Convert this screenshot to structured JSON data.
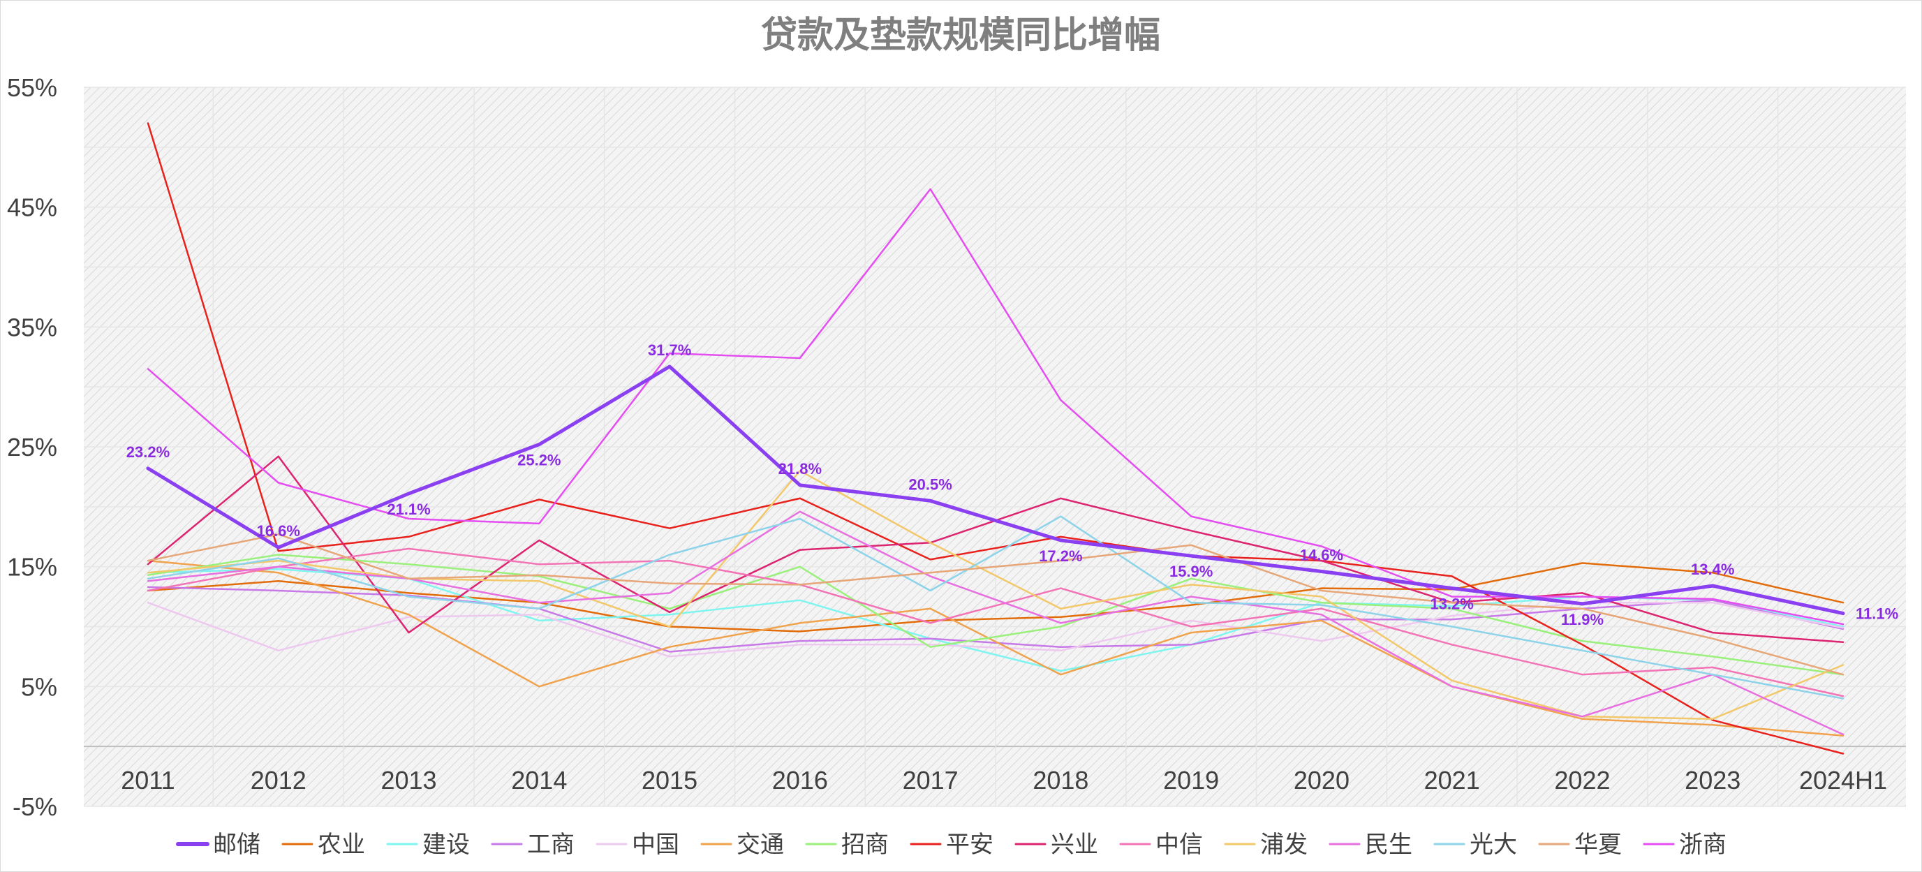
{
  "chart_data": {
    "type": "line",
    "title": "贷款及垫款规模同比增幅",
    "xlabel": "",
    "ylabel": "",
    "categories": [
      "2011",
      "2012",
      "2013",
      "2014",
      "2015",
      "2016",
      "2017",
      "2018",
      "2019",
      "2020",
      "2021",
      "2022",
      "2023",
      "2024H1"
    ],
    "ylim": [
      -5,
      55
    ],
    "yticks": [
      "55%",
      "45%",
      "35%",
      "25%",
      "15%",
      "5%",
      "-5%"
    ],
    "ytick_values": [
      55,
      45,
      35,
      25,
      15,
      5,
      -5
    ],
    "grid": true,
    "legend_position": "bottom",
    "series": [
      {
        "name": "邮储",
        "color": "#8a3ff0",
        "width": 5,
        "labels": true,
        "values": [
          23.2,
          16.6,
          21.1,
          25.2,
          31.7,
          21.8,
          20.5,
          17.2,
          15.9,
          14.6,
          13.2,
          11.9,
          13.4,
          11.1
        ]
      },
      {
        "name": "农业",
        "color": "#e36c0a",
        "width": 2.5,
        "values": [
          13.0,
          13.8,
          12.8,
          12.0,
          10.0,
          9.6,
          10.5,
          10.8,
          11.8,
          13.2,
          13.1,
          15.3,
          14.5,
          12.0
        ]
      },
      {
        "name": "建设",
        "color": "#7ff5f0",
        "width": 2.5,
        "values": [
          14.5,
          14.8,
          14.0,
          10.5,
          11.0,
          12.2,
          9.0,
          6.3,
          8.5,
          12.0,
          11.7,
          12.5,
          12.2,
          10.0
        ]
      },
      {
        "name": "工商",
        "color": "#c879e8",
        "width": 2.5,
        "values": [
          13.3,
          13.0,
          12.6,
          11.5,
          7.9,
          8.8,
          9.0,
          8.3,
          8.5,
          10.6,
          10.6,
          11.5,
          12.2,
          9.8
        ]
      },
      {
        "name": "中国",
        "color": "#eec9ef",
        "width": 2.5,
        "values": [
          12.0,
          8.0,
          10.8,
          11.0,
          7.5,
          8.5,
          8.5,
          8.0,
          10.5,
          8.8,
          10.9,
          12.0,
          12.0,
          9.9
        ]
      },
      {
        "name": "交通",
        "color": "#f0a24c",
        "width": 2.5,
        "values": [
          15.5,
          14.5,
          11.0,
          5.0,
          8.3,
          10.3,
          11.5,
          6.0,
          9.5,
          10.5,
          5.0,
          2.3,
          1.8,
          0.9
        ]
      },
      {
        "name": "招商",
        "color": "#99f07a",
        "width": 2.5,
        "values": [
          14.3,
          16.0,
          15.2,
          14.2,
          11.5,
          15.0,
          8.3,
          10.0,
          14.0,
          12.0,
          11.5,
          8.8,
          7.5,
          6.0
        ]
      },
      {
        "name": "平安",
        "color": "#e8211c",
        "width": 2.5,
        "values": [
          52.0,
          16.3,
          17.5,
          20.6,
          18.2,
          20.7,
          15.6,
          17.5,
          15.9,
          15.5,
          14.2,
          8.5,
          2.2,
          -0.6
        ]
      },
      {
        "name": "兴业",
        "color": "#dc2470",
        "width": 2.5,
        "values": [
          15.2,
          24.2,
          9.5,
          17.2,
          11.2,
          16.4,
          17.0,
          20.7,
          18.0,
          15.5,
          12.0,
          12.8,
          9.5,
          8.7
        ]
      },
      {
        "name": "中信",
        "color": "#f274b6",
        "width": 2.5,
        "values": [
          13.0,
          15.0,
          16.5,
          15.2,
          15.5,
          13.5,
          10.3,
          13.2,
          10.0,
          11.5,
          8.5,
          6.0,
          6.6,
          4.2
        ]
      },
      {
        "name": "浦发",
        "color": "#f2c86a",
        "width": 2.5,
        "values": [
          14.5,
          15.5,
          14.0,
          13.8,
          10.0,
          23.0,
          17.0,
          11.5,
          13.5,
          12.5,
          5.5,
          2.5,
          2.3,
          6.8
        ]
      },
      {
        "name": "民生",
        "color": "#e76fe0",
        "width": 2.5,
        "values": [
          13.8,
          15.0,
          14.0,
          12.0,
          12.8,
          19.6,
          14.2,
          10.3,
          12.5,
          11.0,
          5.0,
          2.5,
          6.0,
          1.0
        ]
      },
      {
        "name": "光大",
        "color": "#8dd3e9",
        "width": 2.5,
        "values": [
          14.0,
          15.7,
          12.5,
          11.5,
          16.0,
          19.0,
          13.0,
          19.2,
          12.0,
          11.8,
          10.0,
          8.0,
          6.0,
          4.0
        ]
      },
      {
        "name": "华夏",
        "color": "#e6a678",
        "width": 2.5,
        "values": [
          15.5,
          17.7,
          14.0,
          14.3,
          13.6,
          13.5,
          14.5,
          15.5,
          16.8,
          13.0,
          12.0,
          11.5,
          9.0,
          6.0
        ]
      },
      {
        "name": "浙商",
        "color": "#e44ef0",
        "width": 2.5,
        "values": [
          31.5,
          22.0,
          19.0,
          18.6,
          32.8,
          32.4,
          46.5,
          28.9,
          19.2,
          16.7,
          12.5,
          12.5,
          12.3,
          10.2
        ]
      }
    ]
  }
}
